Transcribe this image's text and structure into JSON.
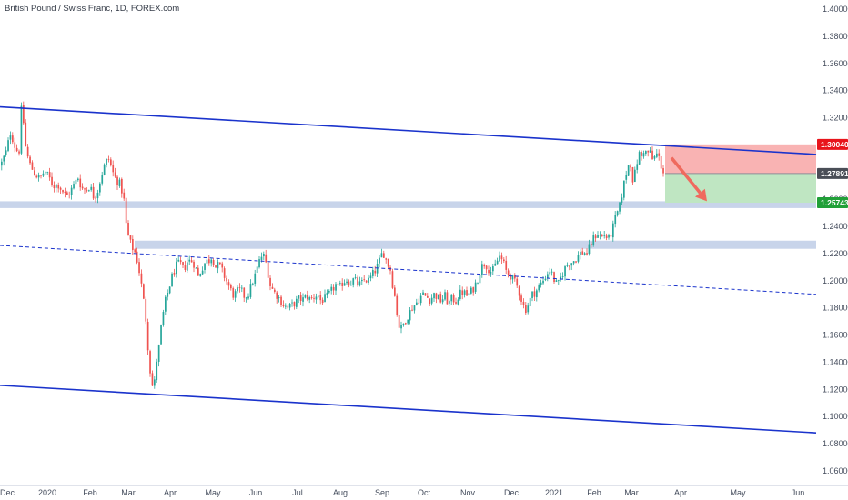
{
  "header": {
    "title": "British Pound / Swiss Franc, 1D, FOREX.com"
  },
  "colors": {
    "up": "#26a69a",
    "down": "#ef5350",
    "channel": "#1a33cc",
    "zone": "#c8d4ea",
    "stop_zone": "#f9b3b3",
    "target_zone": "#bfe6c2",
    "arrow": "#ef6a5e",
    "tag_red": "#e8141b",
    "tag_gray": "#4a4e57",
    "tag_green": "#21a038"
  },
  "chart_data": {
    "type": "candlestick",
    "instrument": "British Pound / Swiss Franc",
    "timeframe": "1D",
    "source": "FOREX.com",
    "y_range": [
      1.05,
      1.405
    ],
    "y_ticks": [
      "1.40000",
      "1.38000",
      "1.36000",
      "1.34000",
      "1.32000",
      "1.30000",
      "1.28000",
      "1.26000",
      "1.24000",
      "1.22000",
      "1.20000",
      "1.18000",
      "1.16000",
      "1.14000",
      "1.12000",
      "1.10000",
      "1.08000",
      "1.06000"
    ],
    "x_ticks": [
      "Dec",
      "2020",
      "Feb",
      "Mar",
      "Apr",
      "May",
      "Jun",
      "Jul",
      "Aug",
      "Sep",
      "Oct",
      "Nov",
      "Dec",
      "2021",
      "Feb",
      "Mar",
      "Apr",
      "May",
      "Jun"
    ],
    "price_tags": [
      {
        "name": "stop",
        "value": "1.30040"
      },
      {
        "name": "last",
        "value": "1.27891"
      },
      {
        "name": "target",
        "value": "1.25743"
      }
    ],
    "trend_lines": [
      {
        "name": "upper-channel",
        "style": "solid",
        "from": 1.328,
        "to": 1.293
      },
      {
        "name": "lower-channel",
        "style": "solid",
        "from": 1.123,
        "to": 1.088
      },
      {
        "name": "mid-channel",
        "style": "dashed",
        "from": 1.226,
        "to": 1.19
      }
    ],
    "zones": [
      {
        "name": "support-zone-upper",
        "from": 1.2535,
        "to": 1.2585
      },
      {
        "name": "support-zone-lower",
        "from": 1.2235,
        "to": 1.2295
      }
    ],
    "path": [
      [
        0,
        1.285
      ],
      [
        6,
        1.295
      ],
      [
        11,
        1.31
      ],
      [
        14,
        1.302
      ],
      [
        17,
        1.296
      ],
      [
        21,
        1.296
      ],
      [
        23,
        1.333
      ],
      [
        27,
        1.3
      ],
      [
        31,
        1.287
      ],
      [
        37,
        1.279
      ],
      [
        43,
        1.275
      ],
      [
        48,
        1.281
      ],
      [
        53,
        1.276
      ],
      [
        58,
        1.27
      ],
      [
        63,
        1.271
      ],
      [
        68,
        1.266
      ],
      [
        72,
        1.262
      ],
      [
        76,
        1.265
      ],
      [
        80,
        1.27
      ],
      [
        85,
        1.276
      ],
      [
        89,
        1.268
      ],
      [
        94,
        1.267
      ],
      [
        98,
        1.27
      ],
      [
        102,
        1.262
      ],
      [
        106,
        1.265
      ],
      [
        110,
        1.276
      ],
      [
        115,
        1.287
      ],
      [
        119,
        1.29
      ],
      [
        123,
        1.28
      ],
      [
        127,
        1.274
      ],
      [
        131,
        1.271
      ],
      [
        135,
        1.262
      ],
      [
        138,
        1.24
      ],
      [
        141,
        1.23
      ],
      [
        145,
        1.224
      ],
      [
        148,
        1.22
      ],
      [
        151,
        1.212
      ],
      [
        155,
        1.195
      ],
      [
        159,
        1.175
      ],
      [
        162,
        1.15
      ],
      [
        165,
        1.128
      ],
      [
        168,
        1.118
      ],
      [
        171,
        1.14
      ],
      [
        174,
        1.152
      ],
      [
        177,
        1.17
      ],
      [
        181,
        1.185
      ],
      [
        185,
        1.195
      ],
      [
        189,
        1.205
      ],
      [
        193,
        1.211
      ],
      [
        197,
        1.213
      ],
      [
        201,
        1.208
      ],
      [
        205,
        1.214
      ],
      [
        209,
        1.215
      ],
      [
        213,
        1.212
      ],
      [
        217,
        1.203
      ],
      [
        221,
        1.209
      ],
      [
        225,
        1.214
      ],
      [
        229,
        1.215
      ],
      [
        232,
        1.218
      ],
      [
        236,
        1.21
      ],
      [
        240,
        1.212
      ],
      [
        244,
        1.206
      ],
      [
        248,
        1.2
      ],
      [
        252,
        1.194
      ],
      [
        256,
        1.189
      ],
      [
        260,
        1.192
      ],
      [
        264,
        1.193
      ],
      [
        268,
        1.188
      ],
      [
        272,
        1.19
      ],
      [
        276,
        1.198
      ],
      [
        280,
        1.205
      ],
      [
        284,
        1.214
      ],
      [
        288,
        1.22
      ],
      [
        292,
        1.212
      ],
      [
        296,
        1.197
      ],
      [
        300,
        1.192
      ],
      [
        304,
        1.189
      ],
      [
        308,
        1.185
      ],
      [
        312,
        1.181
      ],
      [
        316,
        1.18
      ],
      [
        320,
        1.182
      ],
      [
        324,
        1.184
      ],
      [
        328,
        1.187
      ],
      [
        332,
        1.186
      ],
      [
        336,
        1.189
      ],
      [
        340,
        1.186
      ],
      [
        344,
        1.188
      ],
      [
        348,
        1.19
      ],
      [
        352,
        1.185
      ],
      [
        356,
        1.187
      ],
      [
        360,
        1.189
      ],
      [
        364,
        1.193
      ],
      [
        368,
        1.197
      ],
      [
        372,
        1.194
      ],
      [
        376,
        1.199
      ],
      [
        380,
        1.201
      ],
      [
        384,
        1.198
      ],
      [
        388,
        1.201
      ],
      [
        392,
        1.198
      ],
      [
        396,
        1.197
      ],
      [
        400,
        1.201
      ],
      [
        404,
        1.2
      ],
      [
        408,
        1.204
      ],
      [
        412,
        1.208
      ],
      [
        416,
        1.214
      ],
      [
        420,
        1.222
      ],
      [
        424,
        1.214
      ],
      [
        428,
        1.209
      ],
      [
        431,
        1.196
      ],
      [
        434,
        1.185
      ],
      [
        437,
        1.167
      ],
      [
        440,
        1.165
      ],
      [
        444,
        1.17
      ],
      [
        448,
        1.175
      ],
      [
        452,
        1.18
      ],
      [
        456,
        1.183
      ],
      [
        460,
        1.187
      ],
      [
        464,
        1.19
      ],
      [
        468,
        1.188
      ],
      [
        472,
        1.186
      ],
      [
        476,
        1.19
      ],
      [
        480,
        1.188
      ],
      [
        484,
        1.185
      ],
      [
        488,
        1.189
      ],
      [
        492,
        1.183
      ],
      [
        496,
        1.187
      ],
      [
        500,
        1.185
      ],
      [
        504,
        1.19
      ],
      [
        508,
        1.192
      ],
      [
        512,
        1.189
      ],
      [
        516,
        1.191
      ],
      [
        520,
        1.195
      ],
      [
        524,
        1.201
      ],
      [
        528,
        1.21
      ],
      [
        532,
        1.213
      ],
      [
        536,
        1.209
      ],
      [
        540,
        1.206
      ],
      [
        544,
        1.212
      ],
      [
        548,
        1.218
      ],
      [
        552,
        1.214
      ],
      [
        556,
        1.206
      ],
      [
        560,
        1.204
      ],
      [
        564,
        1.2
      ],
      [
        568,
        1.195
      ],
      [
        572,
        1.187
      ],
      [
        576,
        1.178
      ],
      [
        580,
        1.183
      ],
      [
        584,
        1.19
      ],
      [
        588,
        1.192
      ],
      [
        592,
        1.196
      ],
      [
        596,
        1.2
      ],
      [
        600,
        1.205
      ],
      [
        604,
        1.208
      ],
      [
        608,
        1.201
      ],
      [
        612,
        1.196
      ],
      [
        616,
        1.203
      ],
      [
        620,
        1.209
      ],
      [
        624,
        1.213
      ],
      [
        628,
        1.214
      ],
      [
        632,
        1.216
      ],
      [
        636,
        1.22
      ],
      [
        640,
        1.221
      ],
      [
        644,
        1.22
      ],
      [
        648,
        1.226
      ],
      [
        652,
        1.232
      ],
      [
        656,
        1.235
      ],
      [
        660,
        1.232
      ],
      [
        664,
        1.234
      ],
      [
        668,
        1.23
      ],
      [
        672,
        1.237
      ],
      [
        676,
        1.247
      ],
      [
        680,
        1.254
      ],
      [
        683,
        1.265
      ],
      [
        686,
        1.275
      ],
      [
        689,
        1.284
      ],
      [
        692,
        1.287
      ],
      [
        695,
        1.273
      ],
      [
        698,
        1.282
      ],
      [
        701,
        1.294
      ],
      [
        704,
        1.291
      ],
      [
        707,
        1.297
      ],
      [
        710,
        1.293
      ],
      [
        713,
        1.296
      ],
      [
        716,
        1.289
      ],
      [
        719,
        1.291
      ],
      [
        722,
        1.294
      ],
      [
        725,
        1.286
      ],
      [
        729,
        1.279
      ]
    ]
  }
}
